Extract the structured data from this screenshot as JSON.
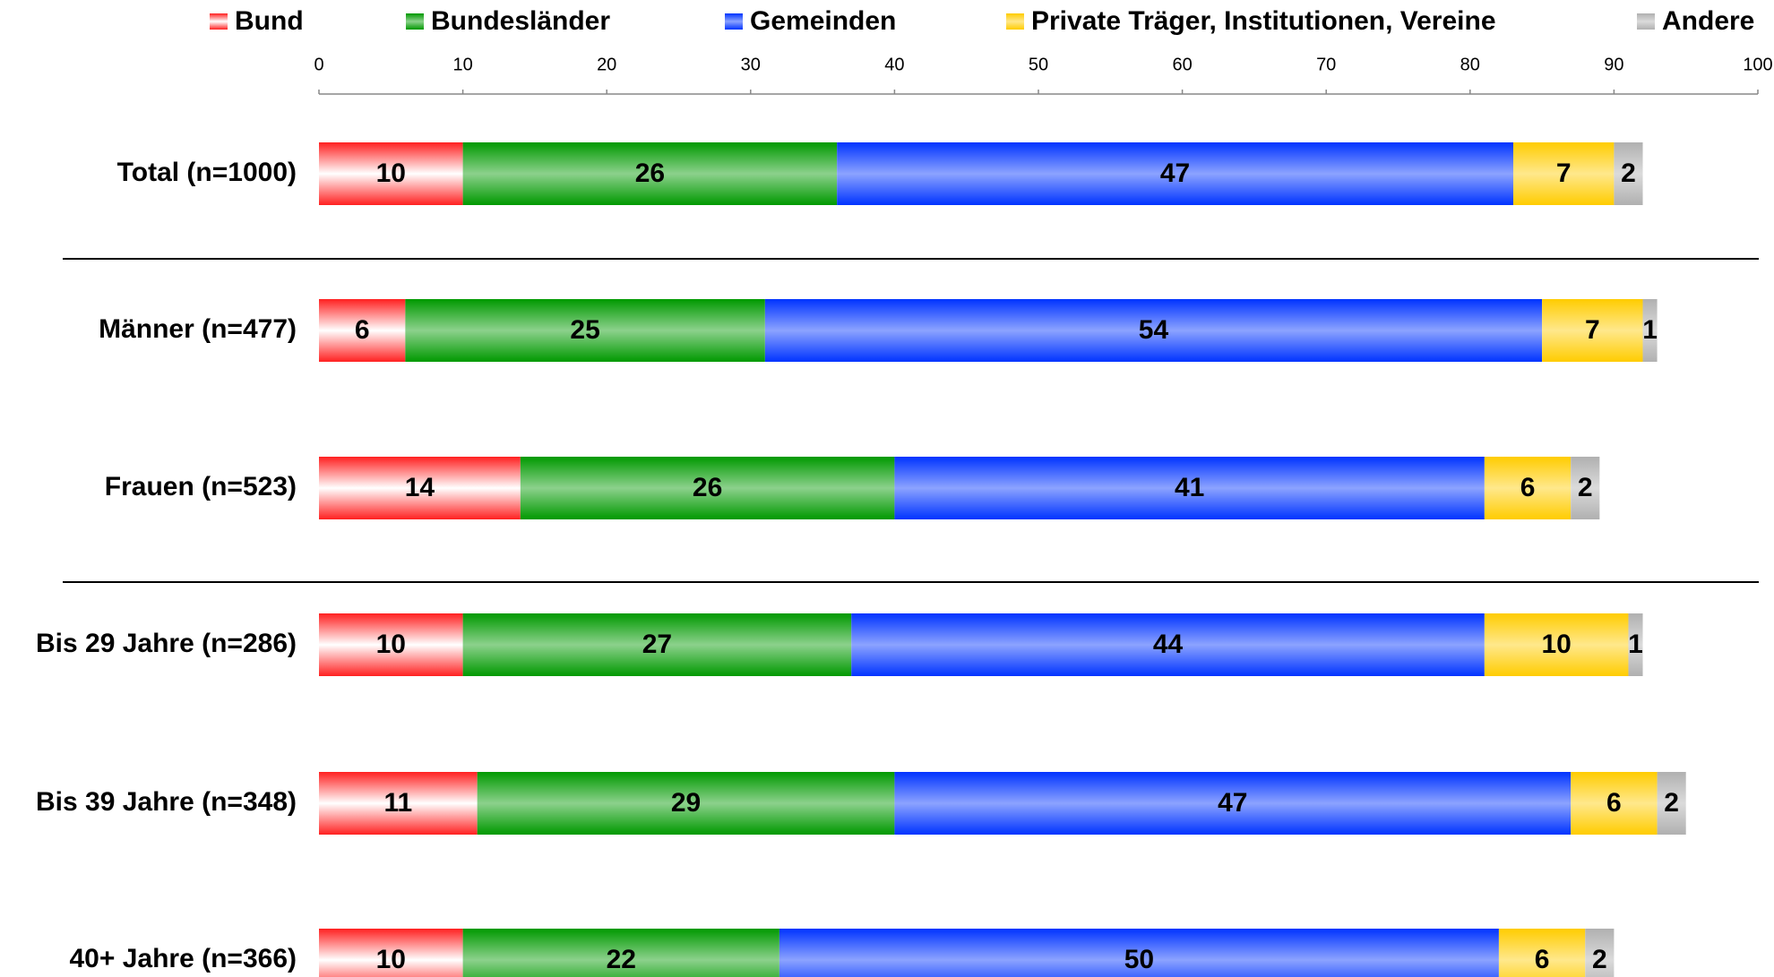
{
  "chart_data": {
    "type": "stacked-bar-horizontal",
    "categories": [
      "Total (n=1000)",
      "Männer (n=477)",
      "Frauen (n=523)",
      "Bis 29 Jahre (n=286)",
      "Bis 39 Jahre (n=348)",
      "40+ Jahre (n=366)"
    ],
    "series": [
      {
        "name": "Bund",
        "color": "#ff2020",
        "values": [
          10,
          6,
          14,
          10,
          11,
          10
        ]
      },
      {
        "name": "Bundesländer",
        "color": "#009900",
        "values": [
          26,
          25,
          26,
          27,
          29,
          22
        ]
      },
      {
        "name": "Gemeinden",
        "color": "#0033ff",
        "values": [
          47,
          54,
          41,
          44,
          47,
          50
        ]
      },
      {
        "name": "Private Träger, Institutionen, Vereine",
        "color": "#ffcc00",
        "values": [
          7,
          7,
          6,
          10,
          6,
          6
        ]
      },
      {
        "name": "Andere",
        "color": "#b0b0b0",
        "values": [
          2,
          1,
          2,
          1,
          2,
          2
        ]
      }
    ],
    "xlim": [
      0,
      100
    ],
    "xticks": [
      0,
      10,
      20,
      30,
      40,
      50,
      60,
      70,
      80,
      90,
      100
    ],
    "legend": "top"
  }
}
